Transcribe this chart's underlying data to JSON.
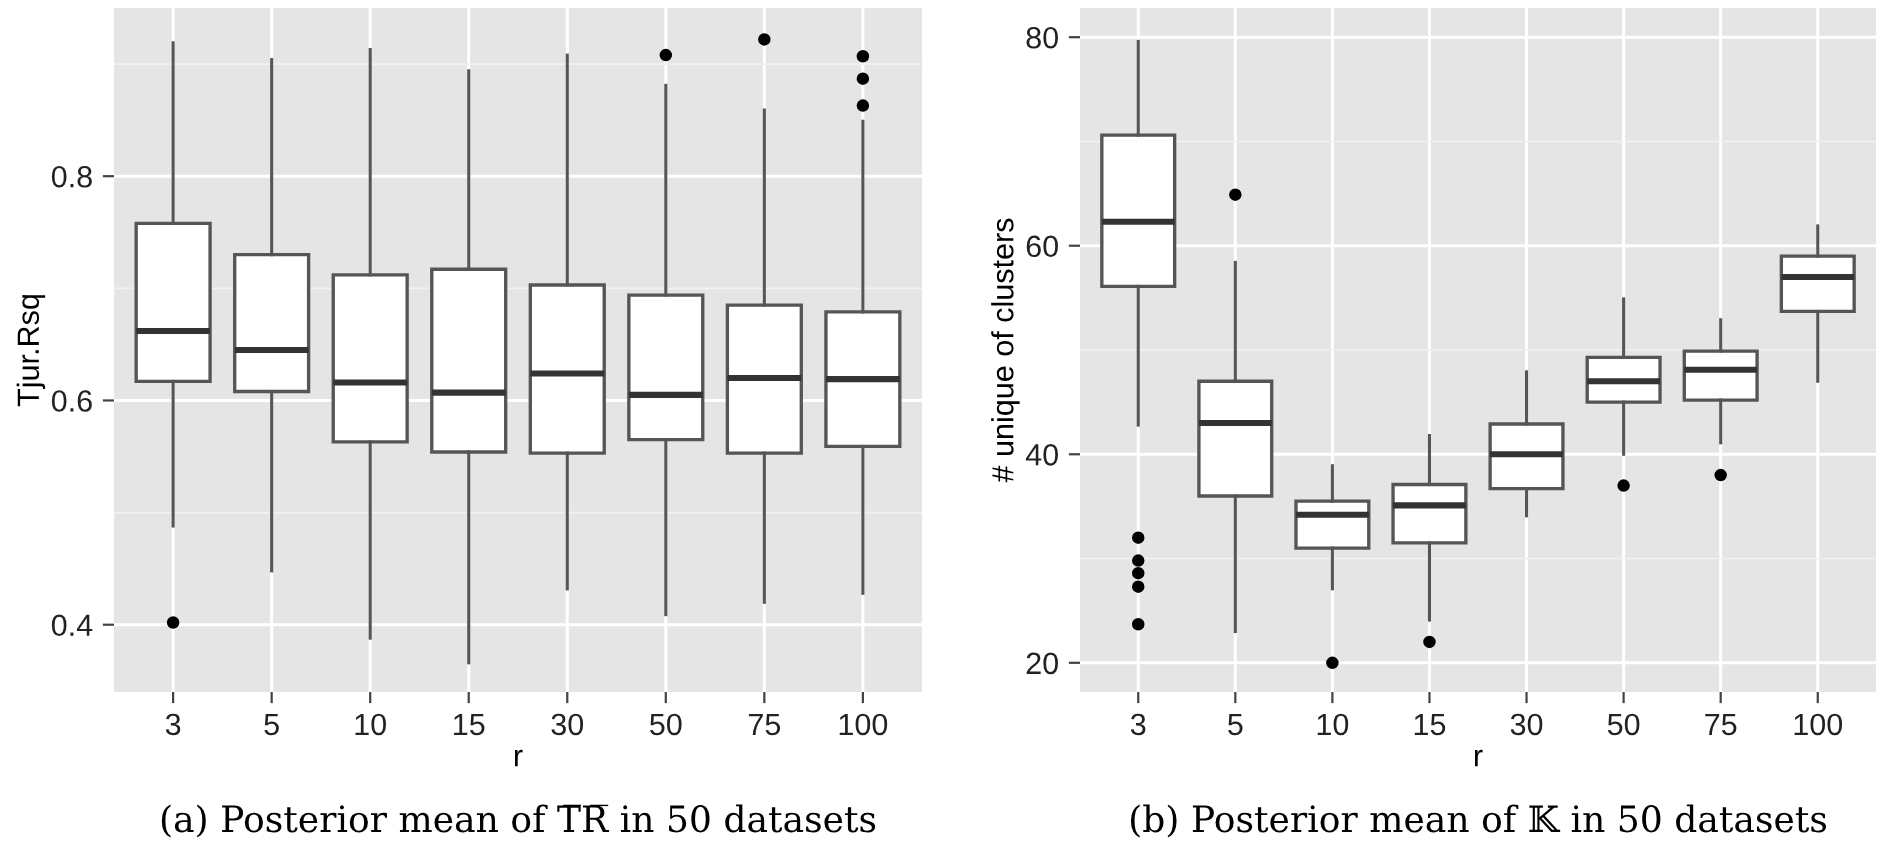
{
  "chart_data": [
    {
      "type": "box",
      "title": "(a) Posterior mean of T̅R̅ in 50 datasets",
      "xlabel": "r",
      "ylabel": "Tjur.Rsq",
      "categories": [
        "3",
        "5",
        "10",
        "15",
        "30",
        "50",
        "75",
        "100"
      ],
      "ylim": [
        0.34,
        0.95
      ],
      "yticks": [
        {
          "value": 0.4,
          "label": "0.4"
        },
        {
          "value": 0.5,
          "label": null
        },
        {
          "value": 0.6,
          "label": "0.6"
        },
        {
          "value": 0.7,
          "label": null
        },
        {
          "value": 0.8,
          "label": "0.8"
        },
        {
          "value": 0.9,
          "label": null
        }
      ],
      "grid": true,
      "boxes": [
        {
          "low": 0.488,
          "q1": 0.617,
          "median": 0.662,
          "q3": 0.758,
          "high": 0.919,
          "outliers": [
            0.402
          ]
        },
        {
          "low": 0.448,
          "q1": 0.608,
          "median": 0.645,
          "q3": 0.73,
          "high": 0.904
        },
        {
          "low": 0.388,
          "q1": 0.563,
          "median": 0.616,
          "q3": 0.712,
          "high": 0.913
        },
        {
          "low": 0.366,
          "q1": 0.554,
          "median": 0.607,
          "q3": 0.717,
          "high": 0.894
        },
        {
          "low": 0.432,
          "q1": 0.553,
          "median": 0.624,
          "q3": 0.703,
          "high": 0.908
        },
        {
          "low": 0.409,
          "q1": 0.565,
          "median": 0.605,
          "q3": 0.694,
          "high": 0.881,
          "outliers": [
            0.908
          ]
        },
        {
          "low": 0.42,
          "q1": 0.553,
          "median": 0.62,
          "q3": 0.685,
          "high": 0.859,
          "outliers": [
            0.922
          ]
        },
        {
          "low": 0.428,
          "q1": 0.559,
          "median": 0.619,
          "q3": 0.679,
          "high": 0.849,
          "outliers": [
            0.907,
            0.887,
            0.863
          ]
        }
      ]
    },
    {
      "type": "box",
      "title": "(b) Posterior mean of 𝕂 in 50 datasets",
      "xlabel": "r",
      "ylabel": "# unique of clusters",
      "categories": [
        "3",
        "5",
        "10",
        "15",
        "30",
        "50",
        "75",
        "100"
      ],
      "ylim": [
        17.2,
        82.8
      ],
      "yticks": [
        {
          "value": 20,
          "label": "20"
        },
        {
          "value": 30,
          "label": null
        },
        {
          "value": 40,
          "label": "40"
        },
        {
          "value": 50,
          "label": null
        },
        {
          "value": 60,
          "label": "60"
        },
        {
          "value": 70,
          "label": null
        },
        {
          "value": 80,
          "label": "80"
        }
      ],
      "grid": true,
      "boxes": [
        {
          "low": 42.8,
          "q1": 56.1,
          "median": 62.3,
          "q3": 70.6,
          "high": 79.6,
          "outliers": [
            32.0,
            29.8,
            28.6,
            27.3,
            23.7
          ]
        },
        {
          "low": 23.0,
          "q1": 36.0,
          "median": 43.0,
          "q3": 47.0,
          "high": 58.4,
          "outliers": [
            64.9
          ]
        },
        {
          "low": 27.1,
          "q1": 31.0,
          "median": 34.2,
          "q3": 35.5,
          "high": 38.9,
          "outliers": [
            20.0
          ]
        },
        {
          "low": 24.1,
          "q1": 31.5,
          "median": 35.1,
          "q3": 37.1,
          "high": 41.8,
          "outliers": [
            22.0
          ]
        },
        {
          "low": 34.1,
          "q1": 36.7,
          "median": 40.0,
          "q3": 42.9,
          "high": 47.9
        },
        {
          "low": 40.0,
          "q1": 45.0,
          "median": 47.0,
          "q3": 49.3,
          "high": 54.9,
          "outliers": [
            37.0
          ]
        },
        {
          "low": 41.1,
          "q1": 45.2,
          "median": 48.1,
          "q3": 49.9,
          "high": 52.9,
          "outliers": [
            38.0
          ]
        },
        {
          "low": 47.0,
          "q1": 53.7,
          "median": 57.0,
          "q3": 59.0,
          "high": 61.9
        }
      ]
    }
  ]
}
